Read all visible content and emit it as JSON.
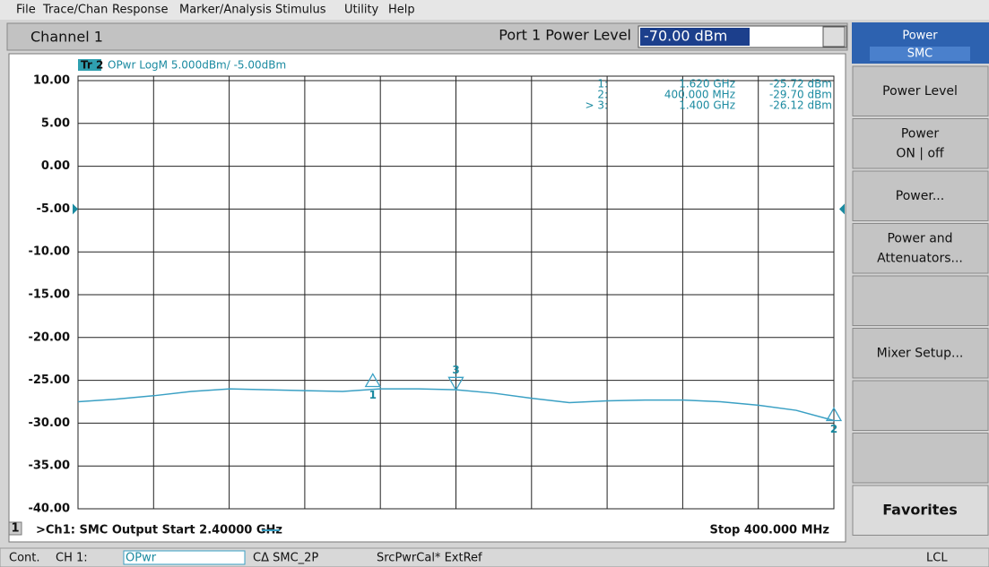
{
  "menu": [
    "File",
    "Trace/Chan",
    "Response",
    "Marker/Analysis",
    "Stimulus",
    "Utility",
    "Help"
  ],
  "toolbar": {
    "channel": "Channel 1",
    "field_label": "Port 1 Power Level",
    "field_value": "-70.00 dBm"
  },
  "chart_data": {
    "type": "line",
    "trace_id": "Tr 2",
    "trace_description": "OPwr LogM 5.000dBm/  -5.00dBm",
    "ref_level": -5,
    "xlim": [
      2.4,
      0.4
    ],
    "ylim": [
      -40,
      10
    ],
    "yticks": [
      {
        "value": 10,
        "label": "10.00"
      },
      {
        "value": 5,
        "label": "5.00"
      },
      {
        "value": 0,
        "label": "0.00"
      },
      {
        "value": -5,
        "label": "-5.00"
      },
      {
        "value": -10,
        "label": "-10.00"
      },
      {
        "value": -15,
        "label": "-15.00"
      },
      {
        "value": -20,
        "label": "-20.00"
      },
      {
        "value": -25,
        "label": "-25.00"
      },
      {
        "value": -30,
        "label": "-30.00"
      },
      {
        "value": -35,
        "label": "-35.00"
      },
      {
        "value": -40,
        "label": "-40.00"
      }
    ],
    "grid": true,
    "x": [
      2.4,
      2.3,
      2.2,
      2.1,
      2.0,
      1.9,
      1.8,
      1.7,
      1.6,
      1.5,
      1.4,
      1.3,
      1.2,
      1.1,
      1.0,
      0.9,
      0.8,
      0.7,
      0.6,
      0.5,
      0.4
    ],
    "series": [
      {
        "color": "#3aa0c4",
        "values": [
          -27.5,
          -27.2,
          -26.8,
          -26.3,
          -26.0,
          -26.1,
          -26.2,
          -26.3,
          -26.0,
          -26.0,
          -26.1,
          -26.5,
          -27.1,
          -27.6,
          -27.4,
          -27.3,
          -27.3,
          -27.5,
          -27.9,
          -28.5,
          -29.7
        ]
      }
    ],
    "markers": [
      {
        "id": "1",
        "id_label": "1:",
        "x": 1.62,
        "x_label": "1.620 GHz",
        "value": -25.72,
        "value_label": "-25.72 dBm"
      },
      {
        "id": "2",
        "id_label": "2:",
        "x": 0.4,
        "x_label": "400.000 MHz",
        "value": -29.7,
        "value_label": "-29.70 dBm"
      },
      {
        "id": "3",
        "id_label": "> 3:",
        "x": 1.4,
        "x_label": "1.400 GHz",
        "value": -26.12,
        "value_label": "-26.12 dBm"
      }
    ],
    "channel_number": "1",
    "start_label": ">Ch1: SMC Output Start  2.40000 GHz",
    "stop_label": "Stop  400.000 MHz"
  },
  "softkeys": {
    "header": [
      "Power",
      "SMC"
    ],
    "buttons": [
      {
        "lines": [
          "Power Level"
        ]
      },
      {
        "lines": [
          "Power",
          "ON | off"
        ]
      },
      {
        "lines": [
          "Power..."
        ]
      },
      {
        "lines": [
          "Power and",
          "Attenuators..."
        ]
      },
      {
        "lines": [
          "Mixer Setup..."
        ]
      },
      {
        "lines": [
          "Favorites"
        ]
      }
    ]
  },
  "status": [
    "Cont.",
    "CH 1:",
    "OPwr",
    "CΔ SMC_2P",
    "SrcPwrCal* ExtRef",
    "LCL"
  ]
}
